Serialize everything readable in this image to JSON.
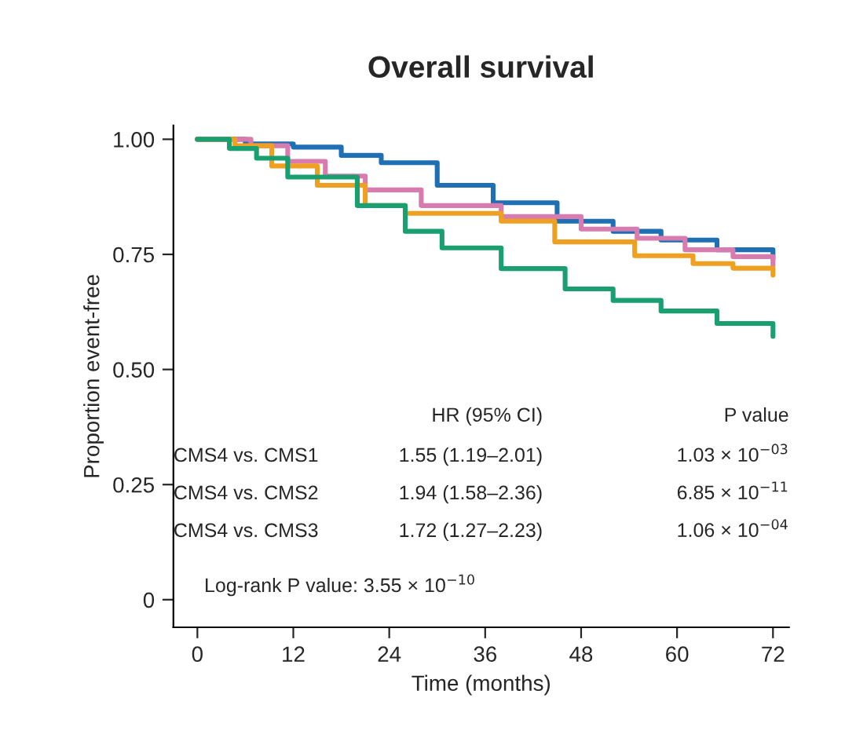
{
  "chart_data": {
    "type": "step",
    "title": "Overall survival",
    "xlabel": "Time (months)",
    "ylabel": "Proportion event-free",
    "xlim": [
      -3,
      74
    ],
    "ylim": [
      -0.06,
      1.03
    ],
    "xticks": [
      0,
      12,
      24,
      36,
      48,
      60,
      72
    ],
    "yticks": [
      {
        "value": 0,
        "label": "0"
      },
      {
        "value": 0.25,
        "label": "0.25"
      },
      {
        "value": 0.5,
        "label": "0.50"
      },
      {
        "value": 0.75,
        "label": "0.75"
      },
      {
        "value": 1.0,
        "label": "1.00"
      }
    ],
    "grid": false,
    "legend": false,
    "series": [
      {
        "color": "#1f6fb5",
        "x": [
          0,
          6,
          12,
          18,
          23,
          30,
          37,
          45,
          52,
          58,
          65,
          72
        ],
        "values": [
          1.0,
          0.99,
          0.983,
          0.965,
          0.949,
          0.9,
          0.862,
          0.822,
          0.8,
          0.781,
          0.76,
          0.74
        ]
      },
      {
        "color": "#d87cb0",
        "x": [
          0,
          6.7,
          11.3,
          16,
          21,
          28,
          38,
          48,
          55,
          61,
          67,
          72
        ],
        "values": [
          1.0,
          0.986,
          0.952,
          0.92,
          0.89,
          0.856,
          0.832,
          0.805,
          0.785,
          0.76,
          0.745,
          0.726
        ]
      },
      {
        "color": "#f0a020",
        "x": [
          0,
          4.7,
          9.3,
          15,
          21,
          26,
          38,
          44.7,
          54.7,
          62,
          67,
          72
        ],
        "values": [
          1.0,
          0.986,
          0.942,
          0.9,
          0.856,
          0.839,
          0.822,
          0.777,
          0.747,
          0.73,
          0.72,
          0.705
        ]
      },
      {
        "color": "#1aa070",
        "x": [
          0,
          4,
          7.4,
          11.3,
          20,
          26,
          30.6,
          38,
          46,
          52,
          58,
          65,
          72
        ],
        "values": [
          1.0,
          0.98,
          0.959,
          0.918,
          0.856,
          0.8,
          0.764,
          0.719,
          0.675,
          0.65,
          0.627,
          0.6,
          0.572
        ]
      }
    ],
    "annotations": [
      "HR (95% CI)",
      "P value",
      "CMS4 vs. CMS1",
      "1.55 (1.19–2.01)",
      "1.03 × 10$^{−03}$",
      "CMS4 vs. CMS2",
      "1.94 (1.58–2.36)",
      "6.85 × 10$^{−11}$",
      "CMS4 vs. CMS3",
      "1.72 (1.27–2.23)",
      "1.06 × 10$^{−04}$",
      "Log-rank P value: 3.55 × 10$^{−10}$"
    ]
  }
}
